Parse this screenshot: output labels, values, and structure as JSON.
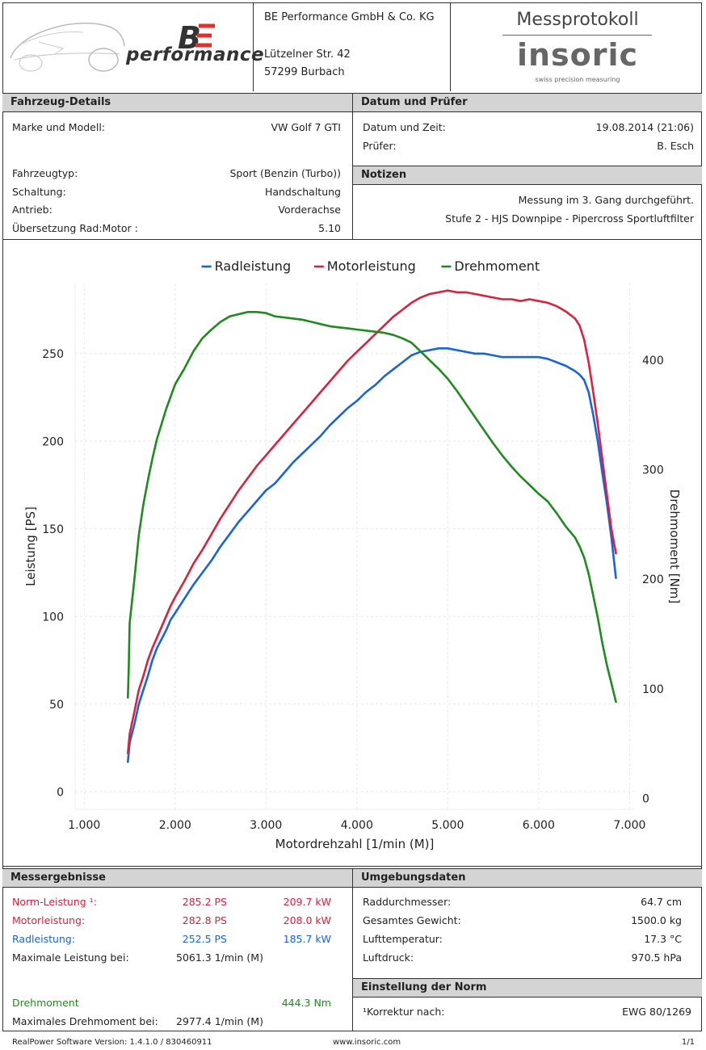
{
  "header": {
    "logo_text": "performance",
    "company_name": "BE Performance GmbH & Co. KG",
    "street": "Lützelner Str. 42",
    "city": "57299 Burbach",
    "protocol_title": "Messprotokoll",
    "brand": "insoric",
    "brand_tagline": "swiss precision measuring"
  },
  "vehicle": {
    "title": "Fahrzeug-Details",
    "rows": [
      {
        "label": "Marke und Modell:",
        "value": "VW Golf 7 GTI"
      },
      {
        "label": "Fahrzeugtyp:",
        "value": "Sport (Benzin (Turbo))"
      },
      {
        "label": "Schaltung:",
        "value": "Handschaltung"
      },
      {
        "label": "Antrieb:",
        "value": "Vorderachse"
      },
      {
        "label": "Übersetzung Rad:Motor :",
        "value": "5.10"
      }
    ]
  },
  "date_examiner": {
    "title": "Datum und Prüfer",
    "rows": [
      {
        "label": "Datum und Zeit:",
        "value": "19.08.2014 (21:06)"
      },
      {
        "label": "Prüfer:",
        "value": "B. Esch"
      }
    ]
  },
  "notes": {
    "title": "Notizen",
    "lines": [
      "Messung im 3. Gang durchgeführt.",
      "Stufe 2 - HJS Downpipe - Pipercross Sportluftfilter"
    ]
  },
  "colors": {
    "rad": "#1a63d8",
    "motor": "#d6233f",
    "dreh": "#1f8a1f"
  },
  "chart_data": {
    "type": "line",
    "xlabel": "Motordrehzahl [1/min (M)]",
    "ylabel": "Leistung [PS]",
    "y2label": "Drehmoment [Nm]",
    "xlim": [
      900,
      7050
    ],
    "ylim": [
      -10,
      290
    ],
    "y2lim": [
      -10,
      470
    ],
    "xticks": [
      1000,
      2000,
      3000,
      4000,
      5000,
      6000,
      7000
    ],
    "xtick_labels": [
      "1.000",
      "2.000",
      "3.000",
      "4.000",
      "5.000",
      "6.000",
      "7.000"
    ],
    "yticks": [
      0,
      50,
      100,
      150,
      200,
      250
    ],
    "y2ticks": [
      0,
      100,
      200,
      300,
      400
    ],
    "grid": true,
    "legend_position": "top-center",
    "series": [
      {
        "name": "Radleistung",
        "axis": "left",
        "color": "#1a63d8",
        "x": [
          1480,
          1500,
          1550,
          1600,
          1650,
          1700,
          1750,
          1800,
          1850,
          1900,
          1950,
          2000,
          2100,
          2200,
          2300,
          2400,
          2500,
          2600,
          2700,
          2800,
          2900,
          3000,
          3100,
          3200,
          3300,
          3400,
          3500,
          3600,
          3700,
          3800,
          3900,
          4000,
          4100,
          4200,
          4300,
          4400,
          4500,
          4600,
          4700,
          4800,
          4900,
          5000,
          5100,
          5200,
          5300,
          5400,
          5500,
          5600,
          5700,
          5800,
          5900,
          6000,
          6100,
          6200,
          6300,
          6400,
          6450,
          6500,
          6550,
          6600,
          6650,
          6700,
          6750,
          6800,
          6850
        ],
        "y": [
          17,
          28,
          38,
          50,
          58,
          66,
          75,
          82,
          87,
          92,
          98,
          102,
          110,
          118,
          125,
          132,
          140,
          147,
          154,
          160,
          166,
          172,
          176,
          182,
          188,
          193,
          198,
          203,
          209,
          214,
          219,
          223,
          228,
          232,
          237,
          241,
          245,
          249,
          251,
          252,
          253,
          253,
          252,
          251,
          250,
          250,
          249,
          248,
          248,
          248,
          248,
          248,
          247,
          245,
          243,
          240,
          238,
          235,
          228,
          215,
          200,
          182,
          165,
          145,
          122
        ]
      },
      {
        "name": "Motorleistung",
        "axis": "left",
        "color": "#d6233f",
        "x": [
          1480,
          1500,
          1550,
          1600,
          1650,
          1700,
          1750,
          1800,
          1850,
          1900,
          1950,
          2000,
          2100,
          2200,
          2300,
          2400,
          2500,
          2600,
          2700,
          2800,
          2900,
          3000,
          3100,
          3200,
          3300,
          3400,
          3500,
          3600,
          3700,
          3800,
          3900,
          4000,
          4100,
          4200,
          4300,
          4400,
          4500,
          4600,
          4700,
          4800,
          4900,
          5000,
          5100,
          5200,
          5300,
          5400,
          5500,
          5600,
          5700,
          5800,
          5900,
          6000,
          6100,
          6200,
          6300,
          6400,
          6450,
          6500,
          6550,
          6600,
          6650,
          6700,
          6750,
          6800,
          6850
        ],
        "y": [
          22,
          33,
          45,
          58,
          66,
          75,
          82,
          88,
          94,
          100,
          106,
          111,
          120,
          130,
          138,
          147,
          156,
          164,
          172,
          179,
          186,
          192,
          198,
          204,
          210,
          216,
          222,
          228,
          234,
          240,
          246,
          251,
          256,
          261,
          266,
          271,
          275,
          279,
          282,
          284,
          285,
          286,
          285,
          285,
          284,
          283,
          282,
          281,
          281,
          280,
          281,
          280,
          279,
          277,
          274,
          270,
          266,
          258,
          245,
          228,
          210,
          190,
          170,
          150,
          136
        ]
      },
      {
        "name": "Drehmoment",
        "axis": "right",
        "color": "#1f8a1f",
        "x": [
          1480,
          1490,
          1500,
          1550,
          1600,
          1650,
          1700,
          1750,
          1800,
          1900,
          2000,
          2100,
          2200,
          2300,
          2400,
          2500,
          2600,
          2700,
          2800,
          2900,
          3000,
          3100,
          3200,
          3300,
          3400,
          3500,
          3600,
          3700,
          3800,
          3900,
          4000,
          4100,
          4200,
          4300,
          4400,
          4500,
          4600,
          4700,
          4800,
          4900,
          5000,
          5100,
          5200,
          5300,
          5400,
          5500,
          5600,
          5700,
          5800,
          5900,
          6000,
          6100,
          6200,
          6300,
          6400,
          6450,
          6500,
          6550,
          6600,
          6650,
          6700,
          6750,
          6800,
          6850
        ],
        "y": [
          92,
          120,
          160,
          198,
          240,
          268,
          290,
          310,
          328,
          355,
          378,
          392,
          408,
          420,
          428,
          435,
          440,
          442,
          444,
          444,
          443,
          440,
          439,
          438,
          437,
          435,
          433,
          431,
          430,
          429,
          428,
          427,
          426,
          425,
          423,
          420,
          416,
          408,
          400,
          392,
          383,
          372,
          360,
          348,
          336,
          324,
          313,
          303,
          294,
          286,
          278,
          271,
          260,
          248,
          238,
          230,
          220,
          205,
          185,
          165,
          142,
          122,
          105,
          88
        ]
      }
    ]
  },
  "results": {
    "title": "Messergebnisse",
    "norm": {
      "label": "Norm-Leistung ¹:",
      "ps": "285.2 PS",
      "kw": "209.7 kW"
    },
    "motor": {
      "label": "Motorleistung:",
      "ps": "282.8 PS",
      "kw": "208.0 kW"
    },
    "rad": {
      "label": "Radleistung:",
      "ps": "252.5 PS",
      "kw": "185.7 kW"
    },
    "max_power": {
      "label": "Maximale Leistung bei:",
      "value": "5061.3 1/min (M)"
    },
    "torque": {
      "label": "Drehmoment",
      "value": "444.3 Nm"
    },
    "max_torque": {
      "label": "Maximales Drehmoment bei:",
      "value": "2977.4 1/min (M)"
    }
  },
  "environment": {
    "title": "Umgebungsdaten",
    "rows": [
      {
        "label": "Raddurchmesser:",
        "value": "64.7 cm"
      },
      {
        "label": "Gesamtes Gewicht:",
        "value": "1500.0 kg"
      },
      {
        "label": "Lufttemperatur:",
        "value": "17.3 °C"
      },
      {
        "label": "Luftdruck:",
        "value": "970.5 hPa"
      }
    ]
  },
  "norm_setting": {
    "title": "Einstellung der Norm",
    "label": "¹Korrektur nach:",
    "value": "EWG 80/1269"
  },
  "footer": {
    "version": "RealPower Software Version: 1.4.1.0 / 830460911",
    "url": "www.insoric.com",
    "page": "1/1"
  }
}
